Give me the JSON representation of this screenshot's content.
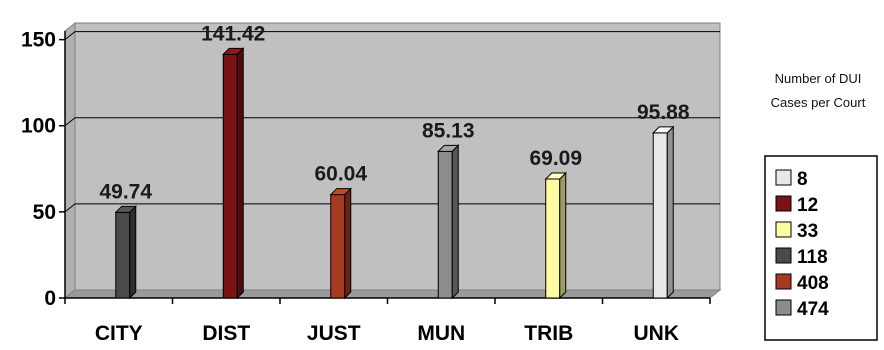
{
  "chart_data": {
    "type": "bar",
    "categories": [
      "CITY",
      "DIST",
      "JUST",
      "MUN",
      "TRIB",
      "UNK"
    ],
    "values": [
      49.74,
      141.42,
      60.04,
      85.13,
      69.09,
      95.88
    ],
    "data_labels": [
      "49.74",
      "141.42",
      "60.04",
      "85.13",
      "69.09",
      "95.88"
    ],
    "bar_colors": [
      "#4a4a4a",
      "#7a1414",
      "#a83a22",
      "#8c8c8c",
      "#fdfca0",
      "#e8e8e8"
    ],
    "yticks": [
      "0",
      "50",
      "100",
      "150"
    ],
    "ylim": [
      0,
      155
    ],
    "grid": true,
    "plot_background": "#c0c0c0",
    "annotation": [
      "Number of DUI",
      "Cases per Court"
    ],
    "legend": {
      "placement": "right",
      "items": [
        {
          "label": "8",
          "color": "#e8e8e8"
        },
        {
          "label": "12",
          "color": "#7a1414"
        },
        {
          "label": "33",
          "color": "#fdfca0"
        },
        {
          "label": "118",
          "color": "#4a4a4a"
        },
        {
          "label": "408",
          "color": "#a83a22"
        },
        {
          "label": "474",
          "color": "#8c8c8c"
        }
      ]
    }
  }
}
